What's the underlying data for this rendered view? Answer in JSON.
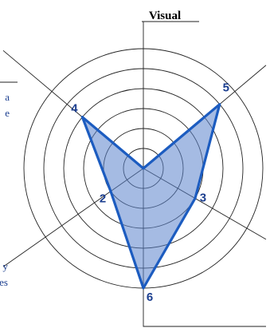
{
  "chart_data": {
    "type": "radar",
    "title": "Visual",
    "axes": [
      {
        "label_lines": [],
        "value": null
      },
      {
        "label_lines": [
          "a",
          "e"
        ],
        "value": 4
      },
      {
        "label_lines": [
          "y",
          "es"
        ],
        "value": 2
      },
      {
        "label_lines": [],
        "value": 6
      },
      {
        "label_lines": [],
        "value": 3
      },
      {
        "label_lines": [],
        "value": 5
      }
    ],
    "rings": 6,
    "grid": true,
    "legend": "none"
  },
  "colors": {
    "fill": "#5b84cc",
    "stroke": "#1c5cc0",
    "label": "#1b3e8f",
    "grid": "#222222"
  }
}
